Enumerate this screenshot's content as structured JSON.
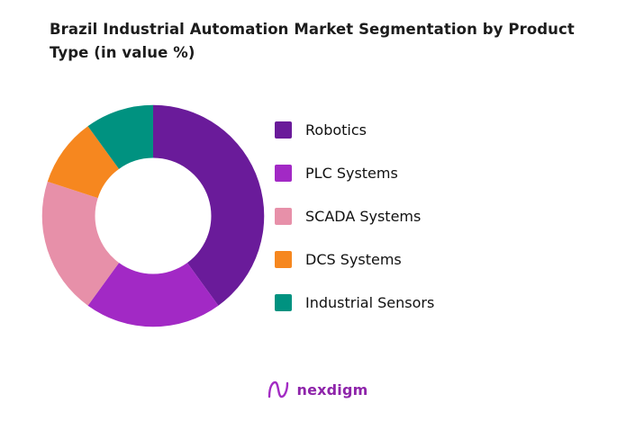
{
  "title": "Brazil Industrial Automation Market Segmentation by Product Type (in value %)",
  "chart_data": {
    "type": "pie",
    "subtype": "donut",
    "title": "Brazil Industrial Automation Market Segmentation by Product Type (in value %)",
    "unit": "value %",
    "categories": [
      "Robotics",
      "PLC Systems",
      "SCADA Systems",
      "DCS Systems",
      "Industrial Sensors"
    ],
    "values": [
      40,
      20,
      20,
      10,
      10
    ],
    "colors": [
      "#6A1B9A",
      "#A229C5",
      "#E790A9",
      "#F6871F",
      "#009280"
    ],
    "start_angle_deg": -90,
    "direction": "clockwise",
    "inner_radius_ratio": 0.52,
    "legend_position": "right"
  },
  "footer": {
    "logo_text": "nexdigm",
    "brand_color": "#8E24AA"
  }
}
